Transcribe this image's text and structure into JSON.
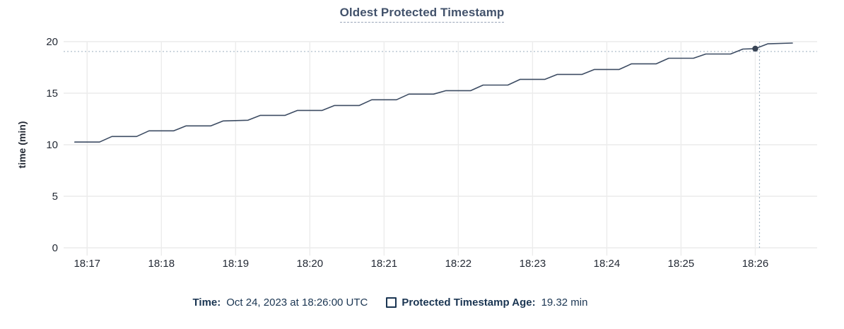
{
  "title": "Oldest Protected Timestamp",
  "colors": {
    "title_text": "#42526b",
    "axis_text": "#242a35",
    "legend_text": "#1a3552",
    "grid": "#ececec",
    "line": "#3d4c63",
    "dot": "#394455",
    "crosshair": "#a6b6c4"
  },
  "chart_data": {
    "type": "line",
    "title": "Oldest Protected Timestamp",
    "xlabel": "",
    "ylabel": "time (min)",
    "ylim": [
      0,
      20
    ],
    "yticks": [
      0,
      5,
      10,
      15,
      20
    ],
    "xticks": [
      "18:17",
      "18:18",
      "18:19",
      "18:20",
      "18:21",
      "18:22",
      "18:23",
      "18:24",
      "18:25",
      "18:26"
    ],
    "x_domain": [
      "18:16:41",
      "18:26:50"
    ],
    "grid": true,
    "legend_position": "bottom",
    "series": [
      {
        "name": "Protected Timestamp Age",
        "unit": "min",
        "points": [
          [
            "18:16:50",
            10.26
          ],
          [
            "18:17:10",
            10.26
          ],
          [
            "18:17:20",
            10.8
          ],
          [
            "18:17:40",
            10.8
          ],
          [
            "18:17:50",
            11.35
          ],
          [
            "18:18:10",
            11.35
          ],
          [
            "18:18:20",
            11.83
          ],
          [
            "18:18:40",
            11.83
          ],
          [
            "18:18:50",
            12.31
          ],
          [
            "18:19:10",
            12.38
          ],
          [
            "18:19:20",
            12.85
          ],
          [
            "18:19:40",
            12.85
          ],
          [
            "18:19:50",
            13.33
          ],
          [
            "18:20:10",
            13.33
          ],
          [
            "18:20:20",
            13.81
          ],
          [
            "18:20:40",
            13.81
          ],
          [
            "18:20:50",
            14.36
          ],
          [
            "18:21:10",
            14.36
          ],
          [
            "18:21:20",
            14.91
          ],
          [
            "18:21:40",
            14.91
          ],
          [
            "18:21:50",
            15.25
          ],
          [
            "18:22:10",
            15.25
          ],
          [
            "18:22:20",
            15.79
          ],
          [
            "18:22:40",
            15.79
          ],
          [
            "18:22:50",
            16.34
          ],
          [
            "18:23:10",
            16.34
          ],
          [
            "18:23:20",
            16.82
          ],
          [
            "18:23:40",
            16.82
          ],
          [
            "18:23:50",
            17.3
          ],
          [
            "18:24:10",
            17.3
          ],
          [
            "18:24:20",
            17.85
          ],
          [
            "18:24:40",
            17.85
          ],
          [
            "18:24:50",
            18.39
          ],
          [
            "18:25:10",
            18.39
          ],
          [
            "18:25:20",
            18.8
          ],
          [
            "18:25:40",
            18.8
          ],
          [
            "18:25:50",
            19.28
          ],
          [
            "18:26:00",
            19.32
          ],
          [
            "18:26:10",
            19.79
          ],
          [
            "18:26:30",
            19.86
          ]
        ]
      }
    ],
    "hover": {
      "time": "18:26:00",
      "value": 19.32
    }
  },
  "legend": {
    "time_label": "Time:",
    "time_value": "Oct 24, 2023 at 18:26:00 UTC",
    "series_label": "Protected Timestamp Age:",
    "series_value": "19.32 min"
  }
}
